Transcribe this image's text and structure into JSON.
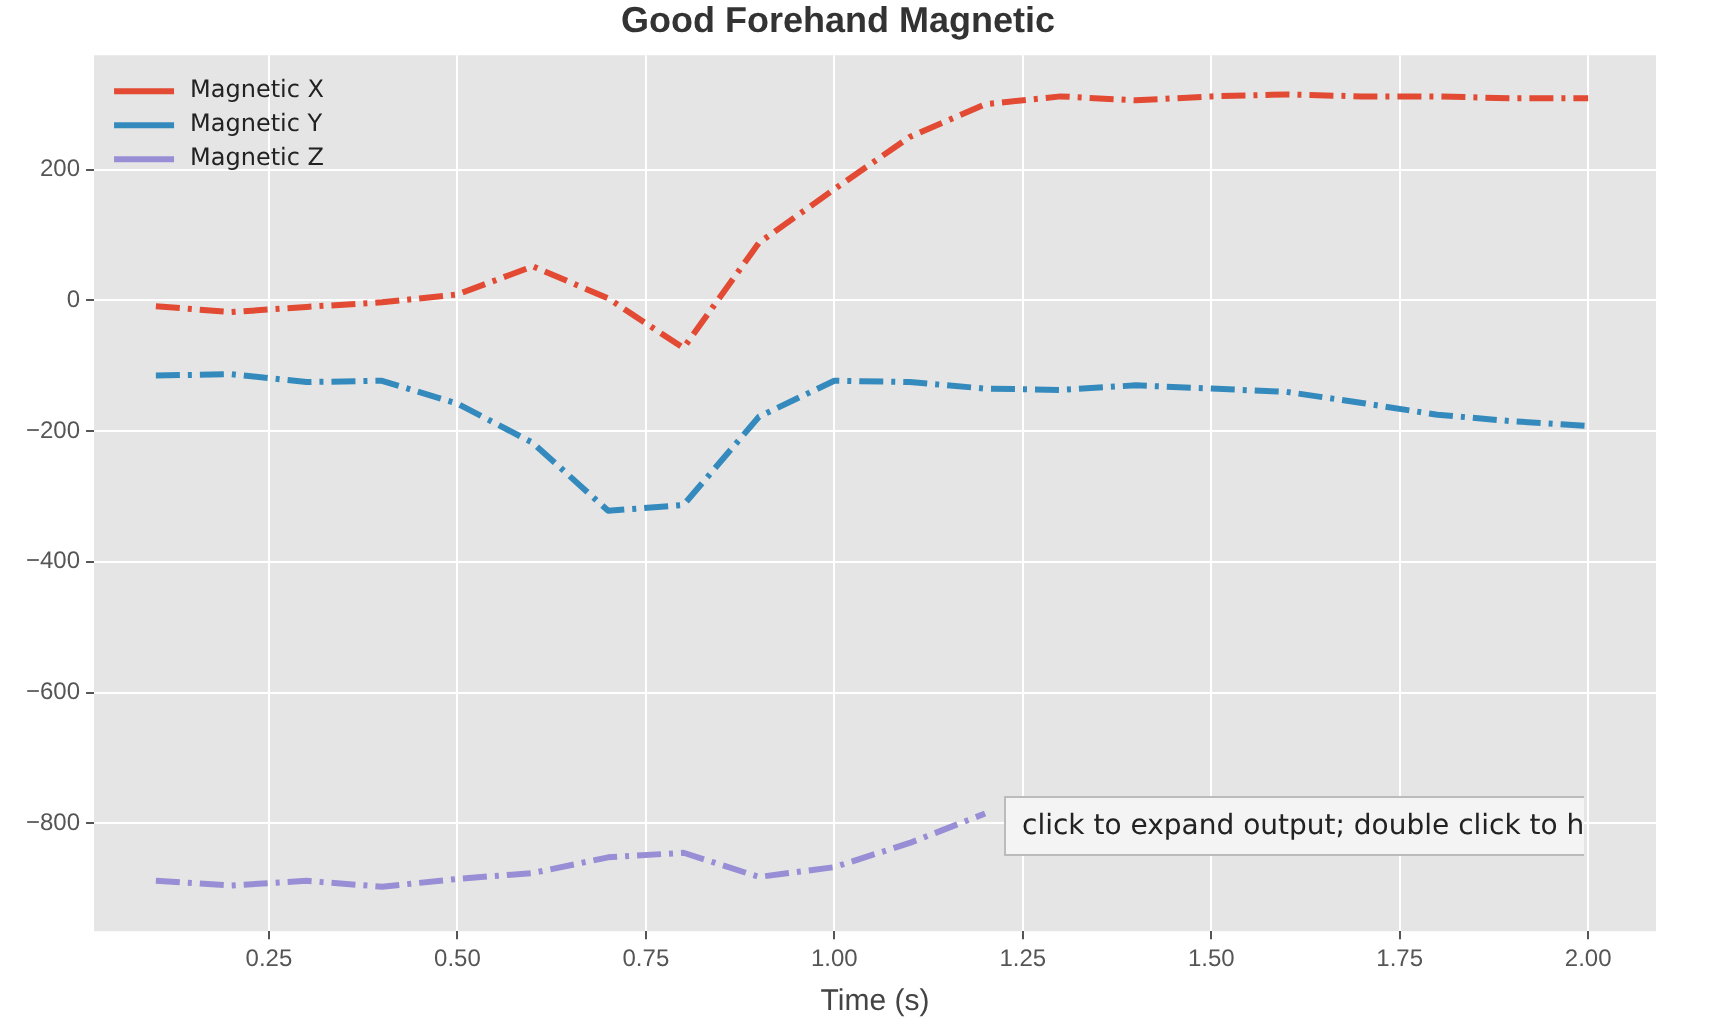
{
  "chart_data": {
    "type": "line",
    "title": "Good Forehand Magnetic",
    "xlabel": "Time (s)",
    "x": [
      0.1,
      0.2,
      0.3,
      0.4,
      0.5,
      0.6,
      0.7,
      0.8,
      0.9,
      1.0,
      1.1,
      1.2,
      1.3,
      1.4,
      1.5,
      1.6,
      1.7,
      1.8,
      1.9,
      2.0
    ],
    "series": [
      {
        "name": "Magnetic X",
        "color": "#e24a33",
        "values": [
          -9,
          -18,
          -10,
          -3,
          9,
          52,
          3,
          -73,
          88,
          170,
          250,
          300,
          312,
          306,
          312,
          315,
          312,
          312,
          309,
          309
        ]
      },
      {
        "name": "Magnetic Y",
        "color": "#348abd",
        "values": [
          -115,
          -113,
          -125,
          -123,
          -158,
          -218,
          -322,
          -313,
          -178,
          -123,
          -125,
          -135,
          -137,
          -130,
          -135,
          -140,
          -157,
          -175,
          -185,
          -192
        ]
      },
      {
        "name": "Magnetic Z",
        "color": "#988ed5",
        "values": [
          -888,
          -895,
          -888,
          -897,
          -885,
          -876,
          -852,
          -845,
          -882,
          -867,
          -830,
          -785,
          null,
          null,
          null,
          null,
          null,
          null,
          null,
          null
        ]
      }
    ],
    "xlim": [
      0.018,
      2.09
    ],
    "xticks": [
      {
        "value": 0.25,
        "label": "0.25"
      },
      {
        "value": 0.5,
        "label": "0.50"
      },
      {
        "value": 0.75,
        "label": "0.75"
      },
      {
        "value": 1.0,
        "label": "1.00"
      },
      {
        "value": 1.25,
        "label": "1.25"
      },
      {
        "value": 1.5,
        "label": "1.50"
      },
      {
        "value": 1.75,
        "label": "1.75"
      },
      {
        "value": 2.0,
        "label": "2.00"
      }
    ],
    "ylim": [
      -965,
      375
    ],
    "yticks": [
      -800,
      -600,
      -400,
      -200,
      0,
      200
    ],
    "grid": true,
    "legend": "top left",
    "marker": "none",
    "line_style": "dashed",
    "annotations": [
      "click to expand output; double click to h"
    ]
  }
}
